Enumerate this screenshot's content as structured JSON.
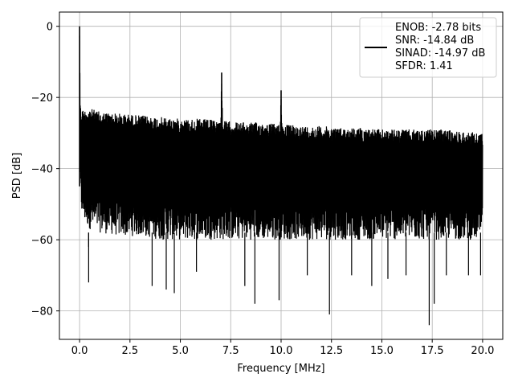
{
  "chart_data": {
    "type": "line",
    "title": "",
    "xlabel": "Frequency [MHz]",
    "ylabel": "PSD [dB]",
    "xlim": [
      -1.0,
      21.0
    ],
    "ylim": [
      -88,
      4
    ],
    "xticks": [
      0.0,
      2.5,
      5.0,
      7.5,
      10.0,
      12.5,
      15.0,
      17.5,
      20.0
    ],
    "xtick_labels": [
      "0.0",
      "2.5",
      "5.0",
      "7.5",
      "10.0",
      "12.5",
      "15.0",
      "17.5",
      "20.0"
    ],
    "yticks": [
      0,
      -20,
      -40,
      -60,
      -80
    ],
    "ytick_labels": [
      "0",
      "−20",
      "−40",
      "−60",
      "−80"
    ],
    "grid": true,
    "legend_position": "top-right",
    "color": "#000000",
    "series": [
      {
        "legend_lines": [
          "ENOB: -2.78 bits",
          "SNR: -14.84 dB",
          "SINAD: -14.97 dB",
          "SFDR: 1.41"
        ],
        "x": [
          0.0,
          0.03,
          0.06,
          0.1,
          0.2,
          0.5,
          1.0,
          2.0,
          3.0,
          4.0,
          5.0,
          6.0,
          7.0,
          7.05,
          7.1,
          8.0,
          9.0,
          9.95,
          10.0,
          10.05,
          11.0,
          12.0,
          13.0,
          14.0,
          15.0,
          16.0,
          17.0,
          18.0,
          19.0,
          20.0
        ],
        "upper": [
          0,
          -19,
          -24,
          -23,
          -23.5,
          -23,
          -24,
          -24.5,
          -25,
          -25.5,
          -26,
          -26,
          -26.5,
          -13,
          -26.5,
          -27,
          -27,
          -27.5,
          -18,
          -27.5,
          -28,
          -28,
          -28.5,
          -28.5,
          -29,
          -29,
          -29,
          -29,
          -29.5,
          -30
        ],
        "lower": [
          -27,
          -45,
          -52,
          -53,
          -55,
          -57,
          -58,
          -59,
          -59,
          -60,
          -60,
          -60,
          -60,
          -60,
          -60,
          -60,
          -60,
          -60,
          -60,
          -60,
          -60,
          -60,
          -60,
          -60,
          -60,
          -60,
          -60,
          -60,
          -60,
          -60
        ],
        "dips": [
          {
            "x": 0.45,
            "y": -62
          },
          {
            "x": 0.45,
            "y": -72
          },
          {
            "x": 3.6,
            "y": -73
          },
          {
            "x": 4.3,
            "y": -74
          },
          {
            "x": 4.7,
            "y": -75
          },
          {
            "x": 5.8,
            "y": -69
          },
          {
            "x": 8.2,
            "y": -73
          },
          {
            "x": 8.7,
            "y": -78
          },
          {
            "x": 9.9,
            "y": -77
          },
          {
            "x": 11.3,
            "y": -70
          },
          {
            "x": 12.4,
            "y": -81
          },
          {
            "x": 13.5,
            "y": -70
          },
          {
            "x": 14.5,
            "y": -73
          },
          {
            "x": 15.3,
            "y": -71
          },
          {
            "x": 16.2,
            "y": -70
          },
          {
            "x": 17.35,
            "y": -84
          },
          {
            "x": 17.6,
            "y": -78
          },
          {
            "x": 18.2,
            "y": -70
          },
          {
            "x": 19.3,
            "y": -70
          },
          {
            "x": 19.9,
            "y": -70
          }
        ]
      }
    ]
  }
}
